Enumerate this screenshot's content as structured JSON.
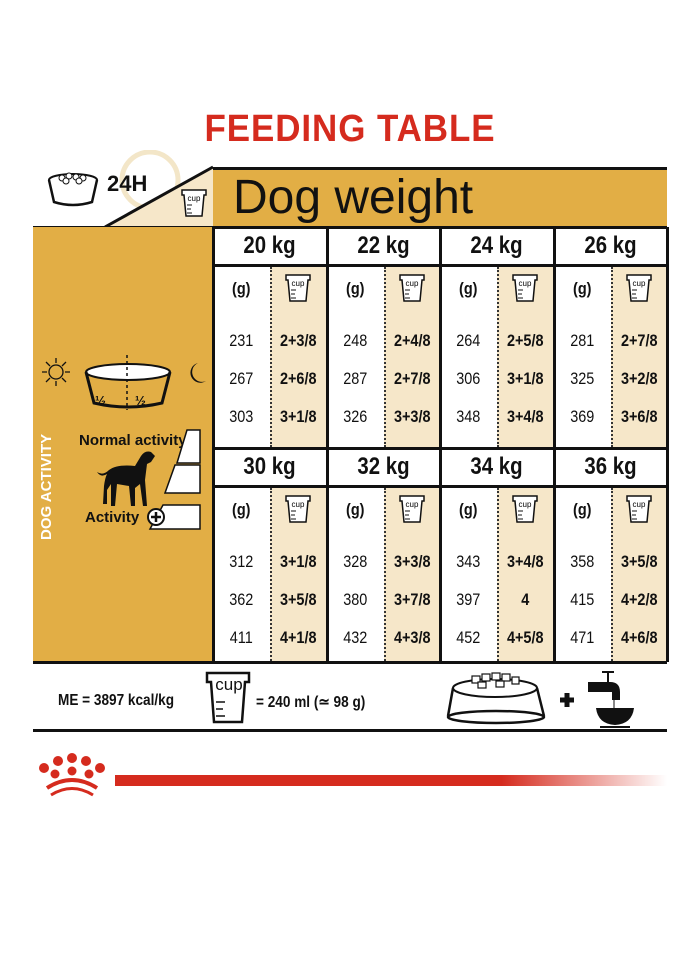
{
  "title": "FEEDING TABLE",
  "header": {
    "label_24h": "24H",
    "dog_weight": "Dog weight",
    "cup_label": "cup"
  },
  "columns_header": {
    "grams": "(g)",
    "cup_label": "cup"
  },
  "blocks": [
    {
      "weights": [
        "20 kg",
        "22 kg",
        "24 kg",
        "26 kg"
      ],
      "rows": [
        [
          [
            "231",
            "2+3/8"
          ],
          [
            "248",
            "2+4/8"
          ],
          [
            "264",
            "2+5/8"
          ],
          [
            "281",
            "2+7/8"
          ]
        ],
        [
          [
            "267",
            "2+6/8"
          ],
          [
            "287",
            "2+7/8"
          ],
          [
            "306",
            "3+1/8"
          ],
          [
            "325",
            "3+2/8"
          ]
        ],
        [
          [
            "303",
            "3+1/8"
          ],
          [
            "326",
            "3+3/8"
          ],
          [
            "348",
            "3+4/8"
          ],
          [
            "369",
            "3+6/8"
          ]
        ]
      ]
    },
    {
      "weights": [
        "30 kg",
        "32 kg",
        "34 kg",
        "36 kg"
      ],
      "rows": [
        [
          [
            "312",
            "3+1/8"
          ],
          [
            "328",
            "3+3/8"
          ],
          [
            "343",
            "3+4/8"
          ],
          [
            "358",
            "3+5/8"
          ]
        ],
        [
          [
            "362",
            "3+5/8"
          ],
          [
            "380",
            "3+7/8"
          ],
          [
            "397",
            "4"
          ],
          [
            "415",
            "4+2/8"
          ]
        ],
        [
          [
            "411",
            "4+1/8"
          ],
          [
            "432",
            "4+3/8"
          ],
          [
            "452",
            "4+5/8"
          ],
          [
            "471",
            "4+6/8"
          ]
        ]
      ]
    }
  ],
  "left_panel": {
    "half_left": "½",
    "half_right": "½",
    "dog_activity": "DOG ACTIVITY",
    "normal_activity": "Normal activity",
    "activity": "Activity"
  },
  "footer": {
    "me": "ME = 3897 kcal/kg",
    "cup_label": "cup",
    "cup_equiv": "= 240 ml (≃ 98 g)"
  },
  "colors": {
    "brand_red": "#d52b1e",
    "gold": "#e2ae45",
    "cream": "#f6e7c9"
  }
}
